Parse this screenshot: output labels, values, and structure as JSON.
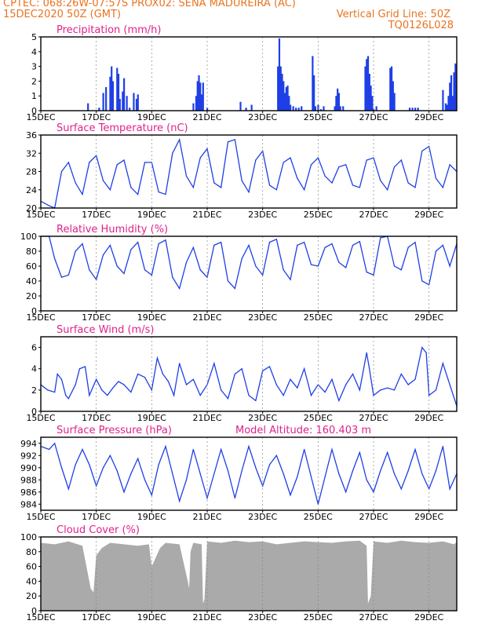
{
  "header": {
    "line1": "CPTEC:   068:26W-07:57S   PROX02: SENA MADUREIRA (AC)",
    "line2_left": "15DEC2020 50Z (GMT)",
    "line2_right": "Vertical Grid Line: 50Z",
    "line3_right": "TQ0126L028"
  },
  "colors": {
    "header": "#e8731f",
    "title": "#e0218a",
    "series": "#1f3fe6",
    "cloud": "#aaaaaa",
    "grid": "#888888"
  },
  "x_ticks": [
    "15DEC",
    "17DEC",
    "19DEC",
    "21DEC",
    "23DEC",
    "25DEC",
    "27DEC",
    "29DEC"
  ],
  "x_tick_days": [
    15,
    17,
    19,
    21,
    23,
    25,
    27,
    29
  ],
  "x_range_days": [
    15,
    30
  ],
  "chart_data": [
    {
      "id": "precip",
      "type": "bar",
      "title": "Precipitation (mm/h)",
      "ylim": [
        0,
        5
      ],
      "yticks": [
        0,
        1,
        2,
        3,
        4,
        5
      ],
      "x_days": [
        16.7,
        17.1,
        17.25,
        17.35,
        17.5,
        17.55,
        17.6,
        17.75,
        17.8,
        17.85,
        17.95,
        18.0,
        18.1,
        18.2,
        18.35,
        18.45,
        18.5,
        20.5,
        20.6,
        20.65,
        20.7,
        20.75,
        20.8,
        20.85,
        21.0,
        22.2,
        22.4,
        22.6,
        23.55,
        23.6,
        23.65,
        23.7,
        23.75,
        23.8,
        23.85,
        23.9,
        23.95,
        24.0,
        24.1,
        24.2,
        24.3,
        24.4,
        24.8,
        24.85,
        24.9,
        25.0,
        25.1,
        25.2,
        25.6,
        25.65,
        25.7,
        25.75,
        25.8,
        25.9,
        26.7,
        26.75,
        26.8,
        26.85,
        26.9,
        26.95,
        27.0,
        27.1,
        27.6,
        27.65,
        27.7,
        27.75,
        28.3,
        28.4,
        28.5,
        28.6,
        29.5,
        29.6,
        29.65,
        29.7,
        29.75,
        29.8,
        29.85,
        29.9,
        29.95
      ],
      "values": [
        0.5,
        0.2,
        1.2,
        1.6,
        2.3,
        3.0,
        2.0,
        2.9,
        2.5,
        0.8,
        1.3,
        2.2,
        1.0,
        0.2,
        1.2,
        0.8,
        1.1,
        0.5,
        1.0,
        2.0,
        2.4,
        1.9,
        1.1,
        1.9,
        0.2,
        0.6,
        0.2,
        0.4,
        3.0,
        4.9,
        3.0,
        2.5,
        2.0,
        1.2,
        1.6,
        1.7,
        1.0,
        0.4,
        0.3,
        0.2,
        0.2,
        0.3,
        3.7,
        2.4,
        0.3,
        0.4,
        0.1,
        0.3,
        0.3,
        1.0,
        1.5,
        1.2,
        0.3,
        0.3,
        3.0,
        3.5,
        3.7,
        2.5,
        1.7,
        1.0,
        0.1,
        0.3,
        2.9,
        3.0,
        2.0,
        1.2,
        0.2,
        0.2,
        0.2,
        0.2,
        1.4,
        0.5,
        0.4,
        1.0,
        1.9,
        2.4,
        1.0,
        2.6,
        3.2
      ]
    },
    {
      "id": "temp",
      "type": "line",
      "title": "Surface Temperature (nC)",
      "ylim": [
        20,
        36
      ],
      "yticks": [
        20,
        24,
        28,
        32,
        36
      ],
      "x_days": [
        15.0,
        15.3,
        15.5,
        15.75,
        16.0,
        16.25,
        16.5,
        16.75,
        17.0,
        17.25,
        17.5,
        17.75,
        18.0,
        18.25,
        18.5,
        18.75,
        19.0,
        19.25,
        19.5,
        19.75,
        20.0,
        20.25,
        20.5,
        20.75,
        21.0,
        21.25,
        21.5,
        21.75,
        22.0,
        22.25,
        22.5,
        22.75,
        23.0,
        23.25,
        23.5,
        23.75,
        24.0,
        24.25,
        24.5,
        24.75,
        25.0,
        25.25,
        25.5,
        25.75,
        26.0,
        26.25,
        26.5,
        26.75,
        27.0,
        27.25,
        27.5,
        27.75,
        28.0,
        28.25,
        28.5,
        28.75,
        29.0,
        29.25,
        29.5,
        29.75,
        30.0
      ],
      "values": [
        21.5,
        20.5,
        20.0,
        28.0,
        30.0,
        25.5,
        23.0,
        30.0,
        31.5,
        26.0,
        24.0,
        29.5,
        30.5,
        24.5,
        23.0,
        30.0,
        30.0,
        23.5,
        23.0,
        32.0,
        35.0,
        27.0,
        24.5,
        31.0,
        33.0,
        25.5,
        24.5,
        34.5,
        35.0,
        26.0,
        23.5,
        30.5,
        32.5,
        25.0,
        24.0,
        30.0,
        31.0,
        26.5,
        24.0,
        29.5,
        31.0,
        27.0,
        25.5,
        29.0,
        29.5,
        25.0,
        24.5,
        30.5,
        31.0,
        26.0,
        24.0,
        29.0,
        30.5,
        25.5,
        24.5,
        32.5,
        33.5,
        26.5,
        24.5,
        29.5,
        28.0
      ]
    },
    {
      "id": "rh",
      "type": "line",
      "title": "Relative Humidity (%)",
      "ylim": [
        0,
        100
      ],
      "yticks": [
        0,
        20,
        40,
        60,
        80,
        100
      ],
      "x_days": [
        15.0,
        15.3,
        15.5,
        15.75,
        16.0,
        16.25,
        16.5,
        16.75,
        17.0,
        17.25,
        17.5,
        17.75,
        18.0,
        18.25,
        18.5,
        18.75,
        19.0,
        19.25,
        19.5,
        19.75,
        20.0,
        20.25,
        20.5,
        20.75,
        21.0,
        21.25,
        21.5,
        21.75,
        22.0,
        22.25,
        22.5,
        22.75,
        23.0,
        23.25,
        23.5,
        23.75,
        24.0,
        24.25,
        24.5,
        24.75,
        25.0,
        25.25,
        25.5,
        25.75,
        26.0,
        26.25,
        26.5,
        26.75,
        27.0,
        27.25,
        27.5,
        27.75,
        28.0,
        28.25,
        28.5,
        28.75,
        29.0,
        29.25,
        29.5,
        29.75,
        30.0
      ],
      "values": [
        100,
        100,
        70,
        45,
        48,
        80,
        90,
        55,
        42,
        75,
        88,
        60,
        50,
        82,
        92,
        55,
        48,
        90,
        95,
        45,
        30,
        65,
        85,
        55,
        45,
        88,
        92,
        40,
        30,
        70,
        88,
        60,
        48,
        92,
        96,
        55,
        42,
        88,
        92,
        62,
        60,
        85,
        90,
        65,
        58,
        88,
        93,
        52,
        48,
        98,
        100,
        60,
        55,
        85,
        92,
        40,
        35,
        80,
        88,
        60,
        90
      ]
    },
    {
      "id": "wind",
      "type": "line",
      "title": "Surface Wind (m/s)",
      "ylim": [
        0,
        7
      ],
      "yticks": [
        0,
        2,
        4,
        6
      ],
      "x_days": [
        15.0,
        15.25,
        15.5,
        15.6,
        15.75,
        15.9,
        16.0,
        16.25,
        16.4,
        16.6,
        16.75,
        17.0,
        17.2,
        17.4,
        17.6,
        17.8,
        18.0,
        18.25,
        18.5,
        18.75,
        19.0,
        19.2,
        19.4,
        19.6,
        19.8,
        20.0,
        20.25,
        20.5,
        20.75,
        21.0,
        21.25,
        21.5,
        21.75,
        22.0,
        22.25,
        22.5,
        22.75,
        23.0,
        23.25,
        23.5,
        23.75,
        24.0,
        24.25,
        24.5,
        24.75,
        25.0,
        25.25,
        25.5,
        25.75,
        26.0,
        26.25,
        26.5,
        26.75,
        26.85,
        27.0,
        27.25,
        27.5,
        27.75,
        28.0,
        28.25,
        28.5,
        28.75,
        28.9,
        29.0,
        29.25,
        29.5,
        29.75,
        30.0
      ],
      "values": [
        2.5,
        2.0,
        1.8,
        3.5,
        3.0,
        1.5,
        1.2,
        2.5,
        4.0,
        4.2,
        1.5,
        3.0,
        2.0,
        1.5,
        2.2,
        2.8,
        2.5,
        1.8,
        3.5,
        3.2,
        2.0,
        5.0,
        3.5,
        2.8,
        1.5,
        4.5,
        2.5,
        3.0,
        1.5,
        2.5,
        4.5,
        2.0,
        1.2,
        3.5,
        4.0,
        1.5,
        1.0,
        3.8,
        4.2,
        2.5,
        1.5,
        3.0,
        2.2,
        4.0,
        1.5,
        2.5,
        1.8,
        3.0,
        1.0,
        2.5,
        3.5,
        2.0,
        5.5,
        4.0,
        1.5,
        2.0,
        2.2,
        2.0,
        3.5,
        2.5,
        3.0,
        6.0,
        5.5,
        1.5,
        2.0,
        4.5,
        2.5,
        0.5
      ]
    },
    {
      "id": "pres",
      "type": "line",
      "title": "Surface Pressure (hPa)",
      "annotation": "Model Altitude: 160.403  m",
      "ylim": [
        983,
        995
      ],
      "yticks": [
        984,
        986,
        988,
        990,
        992,
        994
      ],
      "x_days": [
        15.0,
        15.3,
        15.5,
        15.75,
        16.0,
        16.25,
        16.5,
        16.75,
        17.0,
        17.25,
        17.5,
        17.75,
        18.0,
        18.25,
        18.5,
        18.75,
        19.0,
        19.25,
        19.5,
        19.75,
        20.0,
        20.25,
        20.5,
        20.75,
        21.0,
        21.25,
        21.5,
        21.75,
        22.0,
        22.25,
        22.5,
        22.75,
        23.0,
        23.25,
        23.5,
        23.75,
        24.0,
        24.25,
        24.5,
        24.75,
        25.0,
        25.25,
        25.5,
        25.75,
        26.0,
        26.25,
        26.5,
        26.75,
        27.0,
        27.25,
        27.5,
        27.75,
        28.0,
        28.25,
        28.5,
        28.75,
        29.0,
        29.25,
        29.5,
        29.75,
        30.0
      ],
      "values": [
        993.5,
        993.0,
        994.0,
        990.0,
        986.5,
        990.5,
        993.0,
        990.5,
        987.0,
        990.0,
        992.0,
        989.5,
        986.0,
        989.0,
        991.5,
        988.0,
        985.5,
        990.5,
        993.5,
        989.0,
        984.5,
        988.0,
        993.0,
        989.0,
        985.0,
        989.0,
        993.0,
        989.5,
        985.0,
        989.5,
        993.5,
        990.0,
        987.0,
        990.5,
        992.0,
        989.0,
        985.5,
        988.5,
        993.0,
        988.5,
        984.0,
        988.5,
        993.0,
        989.0,
        986.0,
        989.5,
        992.5,
        988.0,
        986.0,
        989.5,
        992.5,
        989.0,
        986.5,
        989.5,
        993.0,
        989.0,
        986.5,
        989.5,
        993.5,
        986.5,
        989.0
      ]
    },
    {
      "id": "cloud",
      "type": "area",
      "title": "Cloud Cover (%)",
      "ylim": [
        0,
        100
      ],
      "yticks": [
        0,
        20,
        40,
        60,
        80,
        100
      ],
      "x_days": [
        15.0,
        15.5,
        16.0,
        16.5,
        16.8,
        16.9,
        17.0,
        17.2,
        17.5,
        18.0,
        18.5,
        18.9,
        19.0,
        19.3,
        19.5,
        20.0,
        20.3,
        20.35,
        20.4,
        20.5,
        20.8,
        20.85,
        20.9,
        21.0,
        21.5,
        22.0,
        22.5,
        23.0,
        23.5,
        24.0,
        24.5,
        25.0,
        25.5,
        26.0,
        26.5,
        26.75,
        26.8,
        26.9,
        27.0,
        27.5,
        28.0,
        28.5,
        29.0,
        29.5,
        29.9,
        30.0
      ],
      "values": [
        92,
        90,
        94,
        88,
        30,
        25,
        75,
        85,
        92,
        90,
        88,
        90,
        60,
        85,
        92,
        90,
        40,
        30,
        80,
        92,
        90,
        10,
        15,
        94,
        92,
        95,
        93,
        94,
        90,
        92,
        94,
        93,
        92,
        94,
        95,
        88,
        10,
        20,
        94,
        92,
        95,
        93,
        92,
        94,
        90,
        93
      ]
    }
  ]
}
